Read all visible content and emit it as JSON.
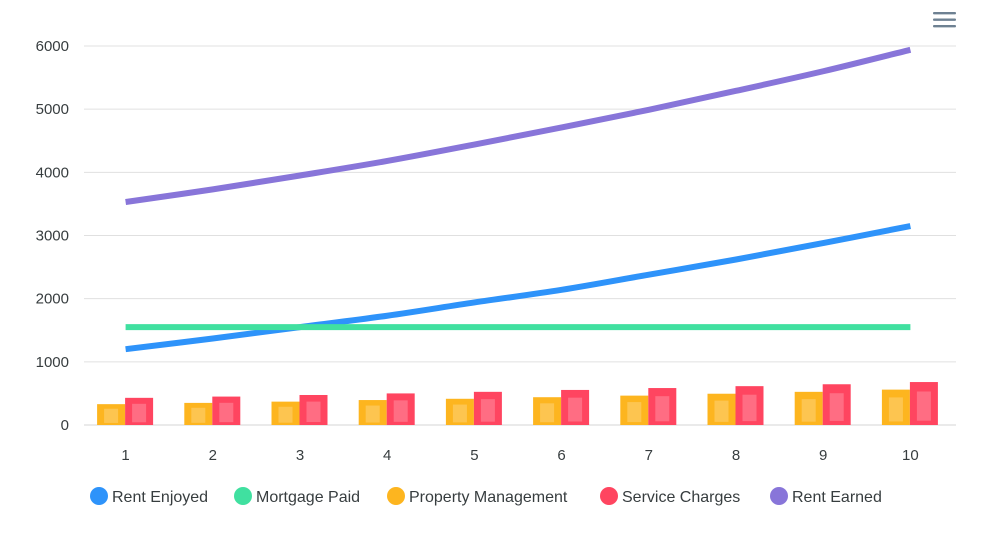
{
  "chart_data": {
    "type": "bar+line",
    "categories": [
      "1",
      "2",
      "3",
      "4",
      "5",
      "6",
      "7",
      "8",
      "9",
      "10"
    ],
    "y_ticks": [
      "0",
      "1000",
      "2000",
      "3000",
      "4000",
      "5000",
      "6000"
    ],
    "ylim": [
      0,
      6000
    ],
    "grid": true,
    "legend_position": "bottom",
    "series": [
      {
        "name": "Rent Enjoyed",
        "kind": "line",
        "color": "#2e93fa",
        "values": [
          1200,
          1370,
          1550,
          1730,
          1940,
          2140,
          2380,
          2620,
          2880,
          3150
        ]
      },
      {
        "name": "Mortgage Paid",
        "kind": "line",
        "color": "#40e0a0",
        "values": [
          1550,
          1550,
          1550,
          1550,
          1550,
          1550,
          1550,
          1550,
          1550,
          1550
        ]
      },
      {
        "name": "Property Management",
        "kind": "bar",
        "color": "#fdb51f",
        "values": [
          330,
          350,
          370,
          395,
          415,
          440,
          465,
          495,
          525,
          560
        ]
      },
      {
        "name": "Service Charges",
        "kind": "bar",
        "color": "#ff4560",
        "values": [
          430,
          450,
          475,
          500,
          525,
          555,
          585,
          615,
          645,
          680
        ]
      },
      {
        "name": "Rent Earned",
        "kind": "line",
        "color": "#8875d9",
        "values": [
          3530,
          3730,
          3950,
          4180,
          4440,
          4710,
          4990,
          5290,
          5600,
          5940
        ]
      }
    ]
  },
  "toolbar": {
    "menu_icon": "hamburger-menu-icon"
  }
}
